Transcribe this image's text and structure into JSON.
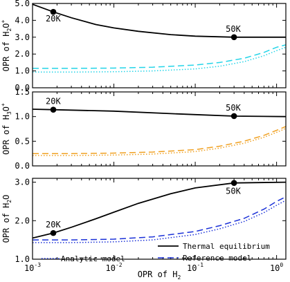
{
  "figure": {
    "xlabel": {
      "base": "OPR of H",
      "sub": "2"
    }
  },
  "chart_data": [
    {
      "type": "line",
      "ylabel": {
        "base": "OPR of H",
        "sub": "2",
        "tail": "O",
        "sup": "+"
      },
      "ylim": [
        0,
        5.0
      ],
      "yticks": [
        0,
        1.0,
        2.0,
        3.0,
        4.0,
        5.0
      ],
      "ytick_labels": [
        "0.0",
        "1.0",
        "2.0",
        "3.0",
        "4.0",
        "5.0"
      ],
      "xlim": [
        0.001,
        1.3
      ],
      "x_scale": "log",
      "series": [
        {
          "key": "thermal",
          "color": "#000000",
          "style": "solid",
          "points": [
            [
              0.001,
              4.95
            ],
            [
              0.0018,
              4.5
            ],
            [
              0.003,
              4.15
            ],
            [
              0.006,
              3.75
            ],
            [
              0.01,
              3.55
            ],
            [
              0.02,
              3.35
            ],
            [
              0.05,
              3.15
            ],
            [
              0.1,
              3.06
            ],
            [
              0.3,
              3.0
            ],
            [
              1.3,
              3.0
            ]
          ]
        },
        {
          "key": "reference",
          "color": "#22d4e8",
          "style": "dashed",
          "points": [
            [
              0.001,
              1.15
            ],
            [
              0.003,
              1.15
            ],
            [
              0.01,
              1.17
            ],
            [
              0.03,
              1.22
            ],
            [
              0.1,
              1.35
            ],
            [
              0.2,
              1.5
            ],
            [
              0.4,
              1.75
            ],
            [
              0.7,
              2.1
            ],
            [
              1.0,
              2.4
            ],
            [
              1.3,
              2.55
            ]
          ]
        },
        {
          "key": "analytic",
          "color": "#22d4e8",
          "style": "dotted",
          "points": [
            [
              0.001,
              0.93
            ],
            [
              0.003,
              0.93
            ],
            [
              0.01,
              0.95
            ],
            [
              0.03,
              1.0
            ],
            [
              0.1,
              1.12
            ],
            [
              0.2,
              1.28
            ],
            [
              0.4,
              1.55
            ],
            [
              0.7,
              1.9
            ],
            [
              1.0,
              2.2
            ],
            [
              1.3,
              2.4
            ]
          ]
        }
      ],
      "markers": [
        {
          "x": 0.0018,
          "y": 4.5,
          "label": "20K"
        },
        {
          "x": 0.3,
          "y": 3.0,
          "label": "50K"
        }
      ]
    },
    {
      "type": "line",
      "ylabel": {
        "base": "OPR of H",
        "sub": "3",
        "tail": "O",
        "sup": "+"
      },
      "ylim": [
        0,
        1.5
      ],
      "yticks": [
        0,
        0.5,
        1.0,
        1.5
      ],
      "ytick_labels": [
        "0.0",
        "0.5",
        "1.0",
        "1.5"
      ],
      "xlim": [
        0.001,
        1.3
      ],
      "x_scale": "log",
      "series": [
        {
          "key": "thermal",
          "color": "#000000",
          "style": "solid",
          "points": [
            [
              0.001,
              1.15
            ],
            [
              0.0018,
              1.14
            ],
            [
              0.01,
              1.11
            ],
            [
              0.05,
              1.06
            ],
            [
              0.1,
              1.04
            ],
            [
              0.3,
              1.01
            ],
            [
              1.3,
              1.0
            ]
          ]
        },
        {
          "key": "reference",
          "color": "#f0a020",
          "style": "dashed",
          "points": [
            [
              0.001,
              0.25
            ],
            [
              0.003,
              0.25
            ],
            [
              0.01,
              0.26
            ],
            [
              0.03,
              0.28
            ],
            [
              0.1,
              0.33
            ],
            [
              0.2,
              0.4
            ],
            [
              0.4,
              0.5
            ],
            [
              0.7,
              0.62
            ],
            [
              1.0,
              0.72
            ],
            [
              1.3,
              0.8
            ]
          ]
        },
        {
          "key": "analytic",
          "color": "#f0a020",
          "style": "dotted",
          "points": [
            [
              0.001,
              0.21
            ],
            [
              0.003,
              0.21
            ],
            [
              0.01,
              0.22
            ],
            [
              0.03,
              0.24
            ],
            [
              0.1,
              0.29
            ],
            [
              0.2,
              0.36
            ],
            [
              0.4,
              0.46
            ],
            [
              0.7,
              0.58
            ],
            [
              1.0,
              0.68
            ],
            [
              1.3,
              0.76
            ]
          ]
        }
      ],
      "markers": [
        {
          "x": 0.0018,
          "y": 1.14,
          "label": "20K"
        },
        {
          "x": 0.3,
          "y": 1.01,
          "label": "50K"
        }
      ]
    },
    {
      "type": "line",
      "ylabel": {
        "base": "OPR of H",
        "sub": "2",
        "tail": "O",
        "sup": ""
      },
      "ylim": [
        1.0,
        3.1
      ],
      "yticks": [
        1.0,
        2.0,
        3.0
      ],
      "ytick_labels": [
        "1.0",
        "2.0",
        "3.0"
      ],
      "xlim": [
        0.001,
        1.3
      ],
      "x_scale": "log",
      "series": [
        {
          "key": "thermal",
          "color": "#000000",
          "style": "solid",
          "points": [
            [
              0.001,
              1.55
            ],
            [
              0.0018,
              1.68
            ],
            [
              0.003,
              1.83
            ],
            [
              0.006,
              2.05
            ],
            [
              0.01,
              2.22
            ],
            [
              0.02,
              2.45
            ],
            [
              0.05,
              2.7
            ],
            [
              0.1,
              2.85
            ],
            [
              0.3,
              2.98
            ],
            [
              1.3,
              3.0
            ]
          ]
        },
        {
          "key": "reference",
          "color": "#1a30d8",
          "style": "dashed",
          "points": [
            [
              0.001,
              1.5
            ],
            [
              0.003,
              1.5
            ],
            [
              0.01,
              1.52
            ],
            [
              0.03,
              1.58
            ],
            [
              0.1,
              1.72
            ],
            [
              0.2,
              1.87
            ],
            [
              0.4,
              2.06
            ],
            [
              0.7,
              2.3
            ],
            [
              1.0,
              2.5
            ],
            [
              1.3,
              2.62
            ]
          ]
        },
        {
          "key": "analytic",
          "color": "#1a30d8",
          "style": "dotted",
          "points": [
            [
              0.001,
              1.43
            ],
            [
              0.003,
              1.43
            ],
            [
              0.01,
              1.45
            ],
            [
              0.03,
              1.5
            ],
            [
              0.1,
              1.64
            ],
            [
              0.2,
              1.79
            ],
            [
              0.4,
              1.98
            ],
            [
              0.7,
              2.21
            ],
            [
              1.0,
              2.4
            ],
            [
              1.3,
              2.53
            ]
          ]
        }
      ],
      "markers": [
        {
          "x": 0.0018,
          "y": 1.68,
          "label": "20K"
        },
        {
          "x": 0.3,
          "y": 2.98,
          "label": "50K"
        }
      ]
    }
  ],
  "legend": {
    "thermal": "Thermal equilibrium",
    "analytic": "Analytic model",
    "reference": "Reference model",
    "analytic_color": "#1a30d8",
    "reference_color": "#1a30d8",
    "thermal_color": "#000000"
  },
  "xaxis": {
    "ticks": [
      0.001,
      0.01,
      0.1,
      1
    ],
    "tick_labels": [
      {
        "base": "10",
        "exp": "-3"
      },
      {
        "base": "10",
        "exp": "-2"
      },
      {
        "base": "10",
        "exp": "-1"
      },
      {
        "base": "10",
        "exp": "0"
      }
    ]
  }
}
